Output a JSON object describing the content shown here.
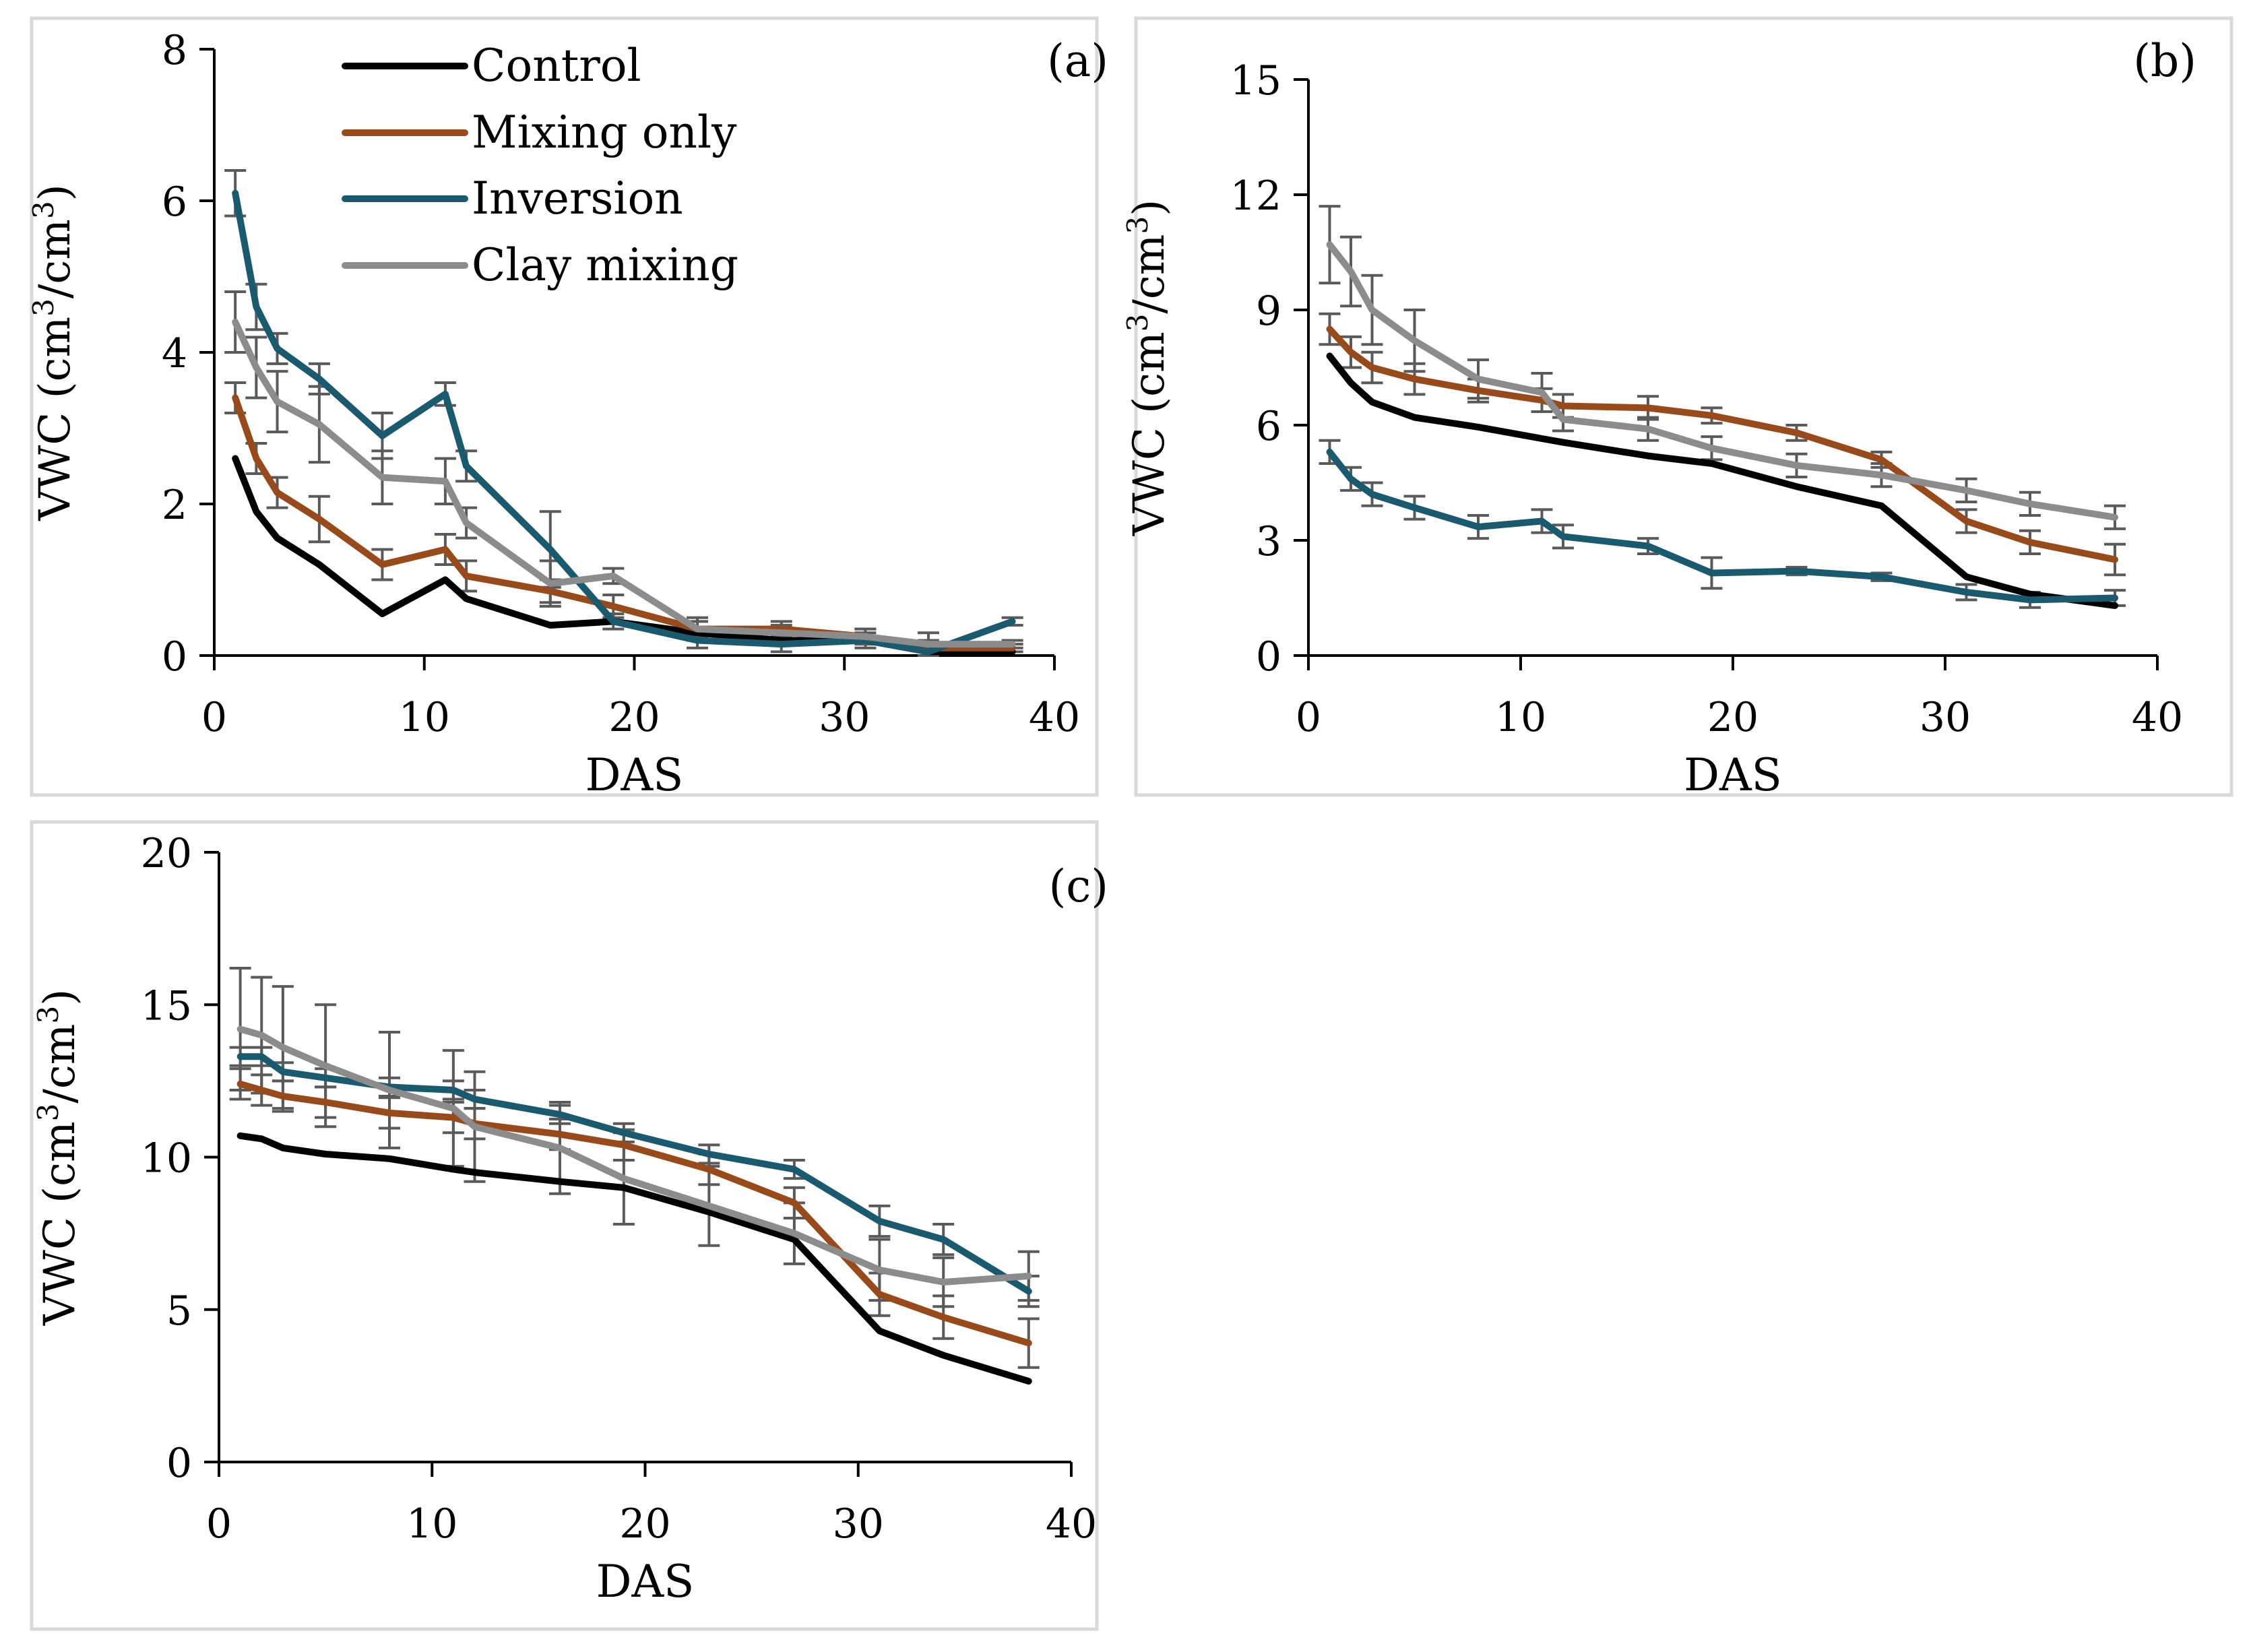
{
  "colors": {
    "control": "#000000",
    "mixing_only": "#984A1A",
    "inversion": "#1A5A6E",
    "clay_mixing": "#8C8C8C",
    "error_bar": "#5A5A5A",
    "axis": "#000000",
    "panel_border": "#D9D9D9"
  },
  "legend": {
    "control": "Control",
    "mixing_only": "Mixing only",
    "inversion": "Inversion",
    "clay_mixing": "Clay mixing"
  },
  "chart_data": [
    {
      "type": "line",
      "panel_label": "(a)",
      "xlabel": "DAS",
      "ylabel_main": "VWC (cm",
      "ylabel_sup1": "3",
      "ylabel_mid": "/cm",
      "ylabel_sup2": "3",
      "ylabel_end": ")",
      "xlim": [
        0,
        40
      ],
      "ylim": [
        0,
        8
      ],
      "xticks": [
        0,
        10,
        20,
        30,
        40
      ],
      "yticks": [
        0,
        2,
        4,
        6,
        8
      ],
      "xtick_labels": [
        "0",
        "10",
        "20",
        "30",
        "40"
      ],
      "ytick_labels": [
        "0",
        "2",
        "4",
        "6",
        "8"
      ],
      "legend_visible": true,
      "series": [
        {
          "key": "control",
          "name": "Control",
          "errorbars": false,
          "x": [
            1,
            2,
            3,
            5,
            8,
            11,
            12,
            16,
            19,
            23,
            27,
            31,
            34,
            38
          ],
          "y": [
            2.6,
            1.9,
            1.55,
            1.2,
            0.55,
            1.0,
            0.75,
            0.4,
            0.45,
            0.3,
            0.2,
            0.2,
            0.05,
            0.05
          ],
          "err": []
        },
        {
          "key": "mixing_only",
          "name": "Mixing only",
          "errorbars": true,
          "x": [
            1,
            2,
            3,
            5,
            8,
            11,
            12,
            16,
            19,
            23,
            27,
            31,
            34,
            38
          ],
          "y": [
            3.4,
            2.6,
            2.15,
            1.8,
            1.2,
            1.4,
            1.05,
            0.85,
            0.65,
            0.35,
            0.35,
            0.25,
            0.1,
            0.1
          ],
          "err": [
            0.2,
            0.2,
            0.2,
            0.3,
            0.2,
            0.2,
            0.2,
            0.15,
            0.15,
            0.1,
            0.1,
            0.1,
            0.1,
            0.05
          ]
        },
        {
          "key": "inversion",
          "name": "Inversion",
          "errorbars": true,
          "x": [
            1,
            2,
            3,
            5,
            8,
            11,
            12,
            16,
            19,
            23,
            27,
            31,
            34,
            38
          ],
          "y": [
            6.1,
            4.6,
            4.05,
            3.65,
            2.9,
            3.45,
            2.5,
            1.4,
            0.45,
            0.2,
            0.15,
            0.2,
            0.05,
            0.45
          ],
          "err": [
            0.3,
            0.3,
            0.2,
            0.2,
            0.3,
            0.15,
            0.2,
            0.5,
            0.1,
            0.1,
            0.1,
            0.1,
            0.05,
            0.05
          ]
        },
        {
          "key": "clay_mixing",
          "name": "Clay mixing",
          "errorbars": true,
          "x": [
            1,
            2,
            3,
            5,
            8,
            11,
            12,
            16,
            19,
            23,
            27,
            31,
            34,
            38
          ],
          "y": [
            4.4,
            3.8,
            3.35,
            3.05,
            2.35,
            2.3,
            1.75,
            0.95,
            1.05,
            0.35,
            0.3,
            0.25,
            0.15,
            0.15
          ],
          "err": [
            0.4,
            0.4,
            0.4,
            0.5,
            0.35,
            0.3,
            0.2,
            0.3,
            0.1,
            0.15,
            0.1,
            0.1,
            0.15,
            0.05
          ]
        }
      ]
    },
    {
      "type": "line",
      "panel_label": "(b)",
      "xlabel": "DAS",
      "ylabel_main": "VWC (cm",
      "ylabel_sup1": "3",
      "ylabel_mid": "/cm",
      "ylabel_sup2": "3",
      "ylabel_end": ")",
      "xlim": [
        0,
        40
      ],
      "ylim": [
        0,
        15
      ],
      "xticks": [
        0,
        10,
        20,
        30,
        40
      ],
      "yticks": [
        0,
        3,
        6,
        9,
        12,
        15
      ],
      "xtick_labels": [
        "0",
        "10",
        "20",
        "30",
        "40"
      ],
      "ytick_labels": [
        "0",
        "3",
        "6",
        "9",
        "12",
        "15"
      ],
      "legend_visible": false,
      "series": [
        {
          "key": "control",
          "name": "Control",
          "errorbars": false,
          "x": [
            1,
            2,
            3,
            5,
            8,
            11,
            12,
            16,
            19,
            23,
            27,
            31,
            34,
            38
          ],
          "y": [
            7.8,
            7.1,
            6.6,
            6.2,
            5.95,
            5.65,
            5.55,
            5.2,
            5.0,
            4.4,
            3.9,
            2.05,
            1.6,
            1.3
          ],
          "err": []
        },
        {
          "key": "mixing_only",
          "name": "Mixing only",
          "errorbars": true,
          "x": [
            1,
            2,
            3,
            5,
            8,
            11,
            12,
            16,
            19,
            23,
            27,
            31,
            34,
            38
          ],
          "y": [
            8.5,
            7.9,
            7.5,
            7.2,
            6.9,
            6.65,
            6.5,
            6.45,
            6.25,
            5.8,
            5.1,
            3.5,
            2.95,
            2.5
          ],
          "err": [
            0.4,
            0.4,
            0.4,
            0.4,
            0.3,
            0.3,
            0.3,
            0.3,
            0.2,
            0.2,
            0.2,
            0.3,
            0.3,
            0.4
          ]
        },
        {
          "key": "inversion",
          "name": "Inversion",
          "errorbars": true,
          "x": [
            1,
            2,
            3,
            5,
            8,
            11,
            12,
            16,
            19,
            23,
            27,
            31,
            34,
            38
          ],
          "y": [
            5.3,
            4.6,
            4.2,
            3.85,
            3.35,
            3.5,
            3.1,
            2.85,
            2.15,
            2.2,
            2.05,
            1.65,
            1.45,
            1.5
          ],
          "err": [
            0.3,
            0.3,
            0.3,
            0.3,
            0.3,
            0.3,
            0.3,
            0.2,
            0.4,
            0.1,
            0.1,
            0.2,
            0.2,
            0.2
          ]
        },
        {
          "key": "clay_mixing",
          "name": "Clay mixing",
          "errorbars": true,
          "x": [
            1,
            2,
            3,
            5,
            8,
            11,
            12,
            16,
            19,
            23,
            27,
            31,
            34,
            38
          ],
          "y": [
            10.7,
            10.0,
            9.0,
            8.2,
            7.2,
            6.85,
            6.15,
            5.9,
            5.4,
            4.95,
            4.7,
            4.3,
            3.95,
            3.6
          ],
          "err": [
            1.0,
            0.9,
            0.9,
            0.8,
            0.5,
            0.5,
            0.3,
            0.3,
            0.3,
            0.3,
            0.3,
            0.3,
            0.3,
            0.3
          ]
        }
      ]
    },
    {
      "type": "line",
      "panel_label": "(c)",
      "xlabel": "DAS",
      "ylabel_main": "VWC (cm",
      "ylabel_sup1": "3",
      "ylabel_mid": "/cm",
      "ylabel_sup2": "3",
      "ylabel_end": ")",
      "xlim": [
        0,
        40
      ],
      "ylim": [
        0,
        20
      ],
      "xticks": [
        0,
        10,
        20,
        30,
        40
      ],
      "yticks": [
        0,
        5,
        10,
        15,
        20
      ],
      "xtick_labels": [
        "0",
        "10",
        "20",
        "30",
        "40"
      ],
      "ytick_labels": [
        "0",
        "5",
        "10",
        "15",
        "20"
      ],
      "legend_visible": false,
      "series": [
        {
          "key": "control",
          "name": "Control",
          "errorbars": false,
          "x": [
            1,
            2,
            3,
            5,
            8,
            11,
            12,
            16,
            19,
            23,
            27,
            31,
            34,
            38
          ],
          "y": [
            10.7,
            10.6,
            10.3,
            10.1,
            9.95,
            9.6,
            9.5,
            9.2,
            9.0,
            8.2,
            7.3,
            4.3,
            3.5,
            2.65
          ],
          "err": []
        },
        {
          "key": "mixing_only",
          "name": "Mixing only",
          "errorbars": true,
          "x": [
            1,
            2,
            3,
            5,
            8,
            11,
            12,
            16,
            19,
            23,
            27,
            31,
            34,
            38
          ],
          "y": [
            12.4,
            12.2,
            12.0,
            11.8,
            11.45,
            11.3,
            11.1,
            10.75,
            10.4,
            9.6,
            8.5,
            5.5,
            4.75,
            3.9
          ],
          "err": [
            0.5,
            0.5,
            0.5,
            0.5,
            0.5,
            0.5,
            0.5,
            0.5,
            0.5,
            0.5,
            0.5,
            0.7,
            0.7,
            0.8
          ]
        },
        {
          "key": "inversion",
          "name": "Inversion",
          "errorbars": true,
          "x": [
            1,
            2,
            3,
            5,
            8,
            11,
            12,
            16,
            19,
            23,
            27,
            31,
            34,
            38
          ],
          "y": [
            13.3,
            13.3,
            12.8,
            12.6,
            12.3,
            12.2,
            11.9,
            11.4,
            10.8,
            10.1,
            9.6,
            7.9,
            7.3,
            5.6
          ],
          "err": [
            0.3,
            0.3,
            0.3,
            0.3,
            0.3,
            0.3,
            0.3,
            0.3,
            0.3,
            0.3,
            0.3,
            0.5,
            0.5,
            0.5
          ]
        },
        {
          "key": "clay_mixing",
          "name": "Clay mixing",
          "errorbars": true,
          "x": [
            1,
            2,
            3,
            5,
            8,
            11,
            12,
            16,
            19,
            23,
            27,
            31,
            34,
            38
          ],
          "y": [
            14.2,
            14.0,
            13.6,
            13.0,
            12.2,
            11.6,
            11.0,
            10.3,
            9.3,
            8.4,
            7.5,
            6.3,
            5.9,
            6.1
          ],
          "err": [
            2.0,
            1.9,
            2.0,
            2.0,
            1.9,
            1.9,
            1.8,
            1.5,
            1.5,
            1.3,
            1.0,
            1.0,
            0.8,
            0.8
          ]
        }
      ]
    }
  ]
}
